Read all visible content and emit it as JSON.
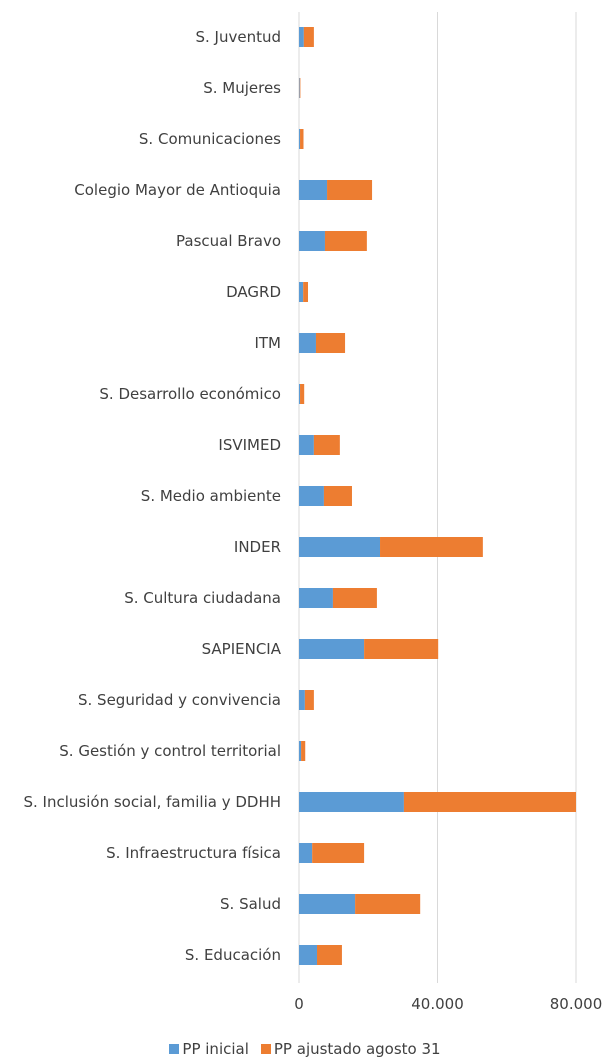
{
  "chart_data": {
    "type": "stacked_barh",
    "categories": [
      "S. Juventud",
      "S. Mujeres",
      "S. Comunicaciones",
      "Colegio Mayor de Antioquia",
      "Pascual Bravo",
      "DAGRD",
      "ITM",
      "S. Desarrollo económico",
      "ISVIMED",
      "S. Medio ambiente",
      "INDER",
      "S. Cultura ciudadana",
      "SAPIENCIA",
      "S. Seguridad y convivencia",
      "S. Gestión y control territorial",
      "S. Inclusión social, familia y DDHH",
      "S. Infraestructura física",
      "S. Salud",
      "S. Educación"
    ],
    "series": [
      {
        "name": "PP inicial",
        "color": "#5b9bd5",
        "values": [
          1400,
          200,
          300,
          8100,
          7500,
          1200,
          4900,
          300,
          4300,
          7200,
          23400,
          9800,
          18800,
          1700,
          600,
          30300,
          3800,
          16200,
          5200
        ]
      },
      {
        "name": "PP ajustado agosto 31",
        "color": "#ed7d31",
        "values": [
          2900,
          200,
          1000,
          13000,
          12100,
          1400,
          8400,
          1200,
          7500,
          8100,
          29700,
          12700,
          21400,
          2600,
          1200,
          49700,
          15000,
          18800,
          7200
        ]
      }
    ],
    "xlim": [
      0,
      80000
    ],
    "xticks": [
      0,
      {
        "value": 40000,
        "label": "40.000"
      },
      {
        "value": 80000,
        "label": "80.000"
      }
    ],
    "grid": true,
    "legend": "bottom"
  }
}
